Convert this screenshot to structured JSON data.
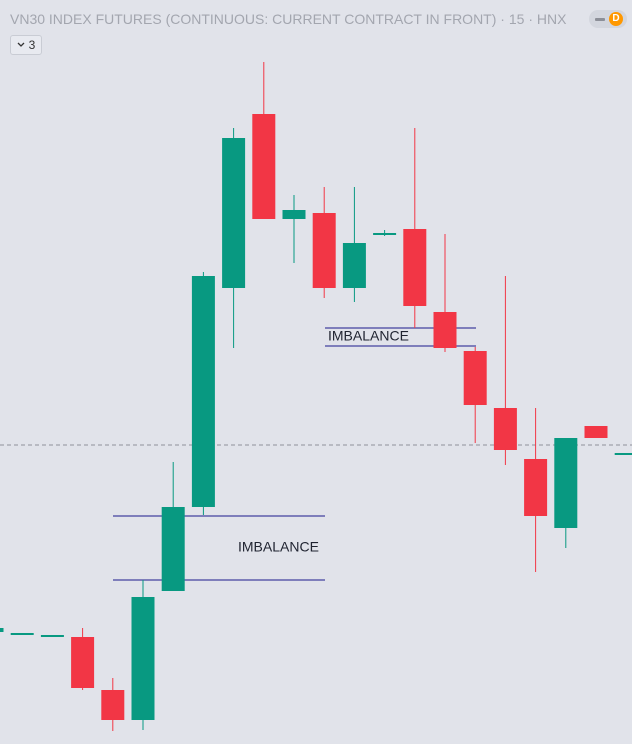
{
  "header": {
    "title": "VN30 INDEX FUTURES (CONTINUOUS: CURRENT CONTRACT IN FRONT)",
    "separator": "·",
    "interval": "15",
    "exchange": "HNX",
    "badge": "D",
    "dropdown": "3"
  },
  "chart_data": {
    "type": "candlestick",
    "up_color": "#089981",
    "down_color": "#f23645",
    "ylim": [
      0,
      744
    ],
    "open": [
      112,
      111,
      109,
      107,
      54,
      24,
      153,
      237,
      456,
      630,
      525,
      531,
      456,
      511,
      515,
      432,
      393,
      336,
      285,
      216,
      318,
      291
    ],
    "high": [
      116,
      111,
      109,
      116,
      66,
      164,
      282,
      472,
      616,
      682,
      549,
      557,
      557,
      514,
      616,
      510,
      397,
      468,
      336,
      306,
      318,
      291
    ],
    "low": [
      112,
      111,
      109,
      54,
      13,
      14,
      153,
      229,
      396,
      525,
      481,
      446,
      442,
      508,
      416,
      392,
      301,
      279,
      172,
      196,
      306,
      291
    ],
    "close": [
      116,
      111,
      109,
      56,
      24,
      147,
      237,
      468,
      606,
      525,
      534,
      456,
      501,
      511,
      438,
      396,
      339,
      294,
      228,
      306,
      306,
      291
    ],
    "zones": [
      {
        "label": "IMBALANCE",
        "high": 228,
        "low": 164
      },
      {
        "label": "IMBALANCE",
        "high": 416,
        "low": 398
      }
    ],
    "last_price": 299
  }
}
